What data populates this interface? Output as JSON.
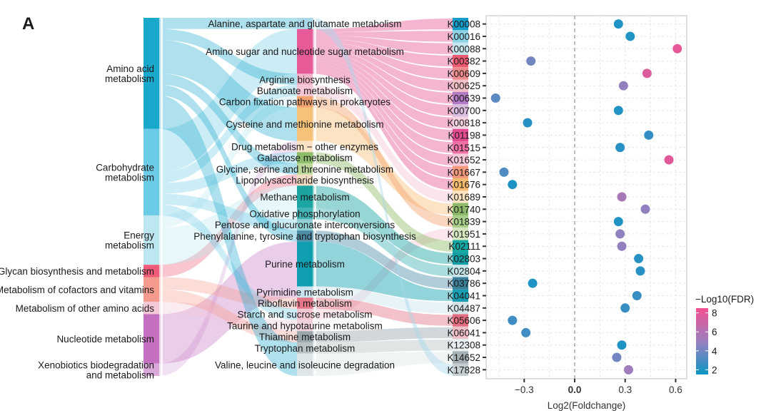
{
  "panel_label": "A",
  "chart_data": [
    {
      "type": "sankey",
      "columns": [
        {
          "name": "category",
          "nodes": [
            {
              "label": "Amino acid\nmetabolism",
              "color": "#18a8cc",
              "weight": 9
            },
            {
              "label": "Carbohydrate\nmetabolism",
              "color": "#6ccbe6",
              "weight": 7
            },
            {
              "label": "Energy\nmetabolism",
              "color": "#bde7f0",
              "weight": 4
            },
            {
              "label": "Glycan biosynthesis and metabolism",
              "color": "#ef5b79",
              "weight": 1
            },
            {
              "label": "Metabolism of cofactors and vitamins",
              "color": "#f59a8c",
              "weight": 2
            },
            {
              "label": "Metabolism of other amino acids",
              "color": "#f4c8d6",
              "weight": 1
            },
            {
              "label": "Nucleotide metabolism",
              "color": "#c46fbf",
              "weight": 4
            },
            {
              "label": "Xenobiotics biodegradation\nand metabolism",
              "color": "#d9a9d9",
              "weight": 1
            }
          ]
        },
        {
          "name": "pathway",
          "nodes": [
            {
              "label": "Alanine, aspartate and glutamate metabolism",
              "color": "#a9d8ea",
              "weight": 1,
              "parent": 0
            },
            {
              "label": "Amino sugar and nucleotide sugar metabolism",
              "color": "#e65a98",
              "weight": 4,
              "parent": 1
            },
            {
              "label": "Arginine biosynthesis",
              "color": "#f3b5cc",
              "weight": 1,
              "parent": 0
            },
            {
              "label": "Butanoate metabolism",
              "color": "#f7c6d4",
              "weight": 1,
              "parent": 1
            },
            {
              "label": "Carbon fixation pathways in prokaryotes",
              "color": "#f5a36e",
              "weight": 1,
              "parent": 2
            },
            {
              "label": "Cysteine and methionine metabolism",
              "color": "#f6c27a",
              "weight": 3,
              "parent": 0
            },
            {
              "label": "Drug metabolism − other enzymes",
              "color": "#fbe2c4",
              "weight": 1,
              "parent": 7
            },
            {
              "label": "Galactose metabolism",
              "color": "#8dbd6a",
              "weight": 1,
              "parent": 1
            },
            {
              "label": "Glycine, serine and threonine metabolism",
              "color": "#bcd99b",
              "weight": 1,
              "parent": 0
            },
            {
              "label": "Lipopolysaccharide biosynthesis",
              "color": "#f2dcc2",
              "weight": 1,
              "parent": 3
            },
            {
              "label": "Methane metabolism",
              "color": "#1aa5a3",
              "weight": 2,
              "parent": 2
            },
            {
              "label": "Oxidative phosphorylation",
              "color": "#42b3b4",
              "weight": 1,
              "parent": 2
            },
            {
              "label": "Pentose and glucuronate interconversions",
              "color": "#8fd0d4",
              "weight": 1,
              "parent": 1
            },
            {
              "label": "Phenylalanine, tyrosine and tryptophan biosynthesis",
              "color": "#4d8da8",
              "weight": 1,
              "parent": 0
            },
            {
              "label": "Purine metabolism",
              "color": "#0f9fb0",
              "weight": 4,
              "parent": 6
            },
            {
              "label": "Pyrimidine metabolism",
              "color": "#c9e4ee",
              "weight": 1,
              "parent": 6
            },
            {
              "label": "Riboflavin metabolism",
              "color": "#e57688",
              "weight": 1,
              "parent": 4
            },
            {
              "label": "Starch and sucrose metabolism",
              "color": "#f3c7d2",
              "weight": 1,
              "parent": 1
            },
            {
              "label": "Taurine and hypotaurine metabolism",
              "color": "#f0d2dc",
              "weight": 1,
              "parent": 5
            },
            {
              "label": "Thiamine metabolism",
              "color": "#9aa7ad",
              "weight": 1,
              "parent": 4
            },
            {
              "label": "Tryptophan metabolism",
              "color": "#b9c3c6",
              "weight": 1,
              "parent": 0
            },
            {
              "label": "Valine, leucine and isoleucine degradation",
              "color": "#dfe6e8",
              "weight": 2,
              "parent": 0
            }
          ]
        }
      ]
    },
    {
      "type": "scatter",
      "xlabel": "Log2(Foldchange)",
      "xlim": [
        -0.52,
        0.65
      ],
      "xticks": [
        "−0.3",
        "0.0",
        "0.3",
        "0.6"
      ],
      "xtick_values": [
        -0.3,
        0.0,
        0.3,
        0.6
      ],
      "reference_line": 0.0,
      "grid": true,
      "legend": {
        "title": "−Log10(FDR)",
        "ticks": [
          2,
          4,
          6,
          8
        ],
        "range": [
          1.5,
          8.5
        ],
        "low_color": "#0a96c4",
        "mid_color": "#9a7fbf",
        "high_color": "#f2508f",
        "placement": "right"
      },
      "points": [
        {
          "ko": "K00008",
          "x": 0.26,
          "fdr": 2.0,
          "node_color": "#139ec9"
        },
        {
          "ko": "K00016",
          "x": 0.33,
          "fdr": 2.0,
          "node_color": "#8fd3e6"
        },
        {
          "ko": "K00088",
          "x": 0.61,
          "fdr": 8.0,
          "node_color": "#c5e6ef"
        },
        {
          "ko": "K00382",
          "x": -0.26,
          "fdr": 4.0,
          "node_color": "#ec5b72"
        },
        {
          "ko": "K00609",
          "x": 0.43,
          "fdr": 7.6,
          "node_color": "#f08b8d"
        },
        {
          "ko": "K00625",
          "x": 0.29,
          "fdr": 4.8,
          "node_color": "#f3c1c6"
        },
        {
          "ko": "K00639",
          "x": -0.47,
          "fdr": 3.5,
          "node_color": "#b27bc4"
        },
        {
          "ko": "K00700",
          "x": 0.26,
          "fdr": 2.0,
          "node_color": "#d9bde0"
        },
        {
          "ko": "K00818",
          "x": -0.28,
          "fdr": 2.2,
          "node_color": "#f5d3e0"
        },
        {
          "ko": "K01198",
          "x": 0.44,
          "fdr": 2.5,
          "node_color": "#e24d92"
        },
        {
          "ko": "K01515",
          "x": 0.27,
          "fdr": 2.2,
          "node_color": "#ef6fa6"
        },
        {
          "ko": "K01652",
          "x": 0.56,
          "fdr": 7.8,
          "node_color": "#f6c6d9"
        },
        {
          "ko": "K01667",
          "x": -0.42,
          "fdr": 3.2,
          "node_color": "#f39a7c"
        },
        {
          "ko": "K01676",
          "x": -0.37,
          "fdr": 2.0,
          "node_color": "#f6bb6e"
        },
        {
          "ko": "K01689",
          "x": 0.28,
          "fdr": 5.5,
          "node_color": "#fbe3c0"
        },
        {
          "ko": "K01740",
          "x": 0.42,
          "fdr": 4.8,
          "node_color": "#8dba6a"
        },
        {
          "ko": "K01839",
          "x": 0.26,
          "fdr": 2.0,
          "node_color": "#a9cf8a"
        },
        {
          "ko": "K01951",
          "x": 0.27,
          "fdr": 4.8,
          "node_color": "#d6e8c0"
        },
        {
          "ko": "K02111",
          "x": 0.28,
          "fdr": 4.8,
          "node_color": "#13a8a4"
        },
        {
          "ko": "K02803",
          "x": 0.38,
          "fdr": 2.2,
          "node_color": "#139fa4"
        },
        {
          "ko": "K02804",
          "x": 0.39,
          "fdr": 2.2,
          "node_color": "#c5e6ea"
        },
        {
          "ko": "K03786",
          "x": -0.25,
          "fdr": 2.0,
          "node_color": "#3b7f99"
        },
        {
          "ko": "K04041",
          "x": 0.37,
          "fdr": 2.6,
          "node_color": "#1a9eb3"
        },
        {
          "ko": "K04487",
          "x": 0.3,
          "fdr": 2.6,
          "node_color": "#d4e4ea"
        },
        {
          "ko": "K05606",
          "x": -0.37,
          "fdr": 2.8,
          "node_color": "#e46e80"
        },
        {
          "ko": "K06041",
          "x": -0.29,
          "fdr": 2.8,
          "node_color": "#f0c0c8"
        },
        {
          "ko": "K12308",
          "x": 0.28,
          "fdr": 2.0,
          "node_color": "#e8eef0"
        },
        {
          "ko": "K14652",
          "x": 0.25,
          "fdr": 4.0,
          "node_color": "#a5b1b5"
        },
        {
          "ko": "K17828",
          "x": 0.32,
          "fdr": 5.2,
          "node_color": "#c5cfd1"
        }
      ],
      "links": [
        [
          1,
          0
        ],
        [
          1,
          1
        ],
        [
          1,
          2
        ],
        [
          1,
          3
        ],
        [
          1,
          4
        ],
        [
          1,
          5
        ],
        [
          1,
          6
        ],
        [
          1,
          7
        ],
        [
          1,
          8
        ],
        [
          1,
          9
        ],
        [
          1,
          10
        ],
        [
          1,
          11
        ],
        [
          1,
          12
        ],
        [
          1,
          13
        ],
        [
          3,
          14
        ],
        [
          5,
          15
        ],
        [
          4,
          16
        ],
        [
          17,
          17
        ],
        [
          7,
          18
        ],
        [
          10,
          19
        ],
        [
          11,
          20
        ],
        [
          13,
          21
        ],
        [
          14,
          22
        ],
        [
          15,
          23
        ],
        [
          16,
          24
        ],
        [
          19,
          25
        ],
        [
          20,
          26
        ],
        [
          21,
          27
        ],
        [
          0,
          28
        ]
      ]
    }
  ]
}
